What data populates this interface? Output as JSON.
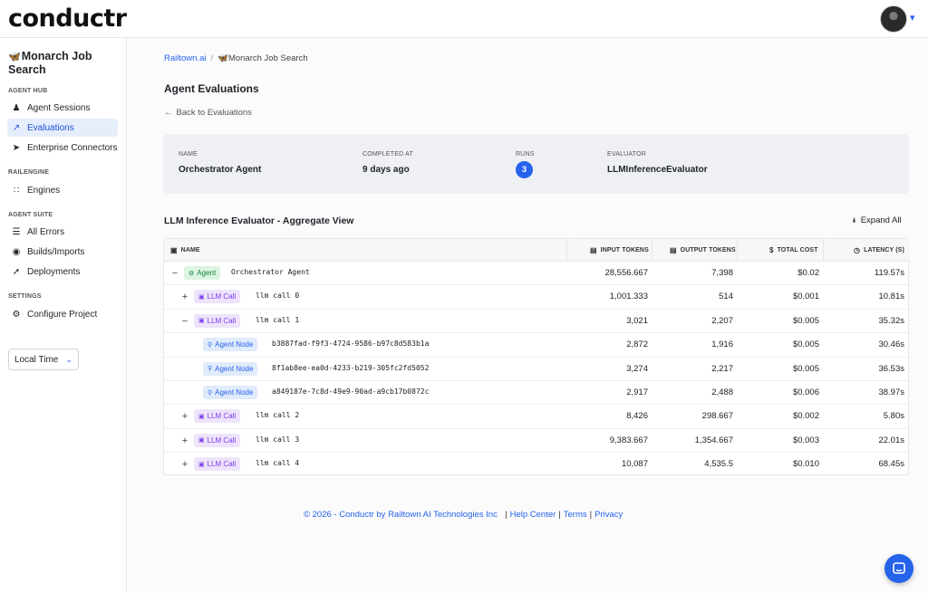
{
  "app": {
    "logo": "conductr"
  },
  "sidebar": {
    "project": "Monarch Job Search",
    "sections": [
      {
        "label": "AGENT HUB",
        "items": [
          {
            "label": "Agent Sessions",
            "icon": "user-icon"
          },
          {
            "label": "Evaluations",
            "icon": "chart-icon",
            "active": true
          },
          {
            "label": "Enterprise Connectors",
            "icon": "send-icon"
          }
        ]
      },
      {
        "label": "RAILENGINE",
        "items": [
          {
            "label": "Engines",
            "icon": "network-icon"
          }
        ]
      },
      {
        "label": "AGENT SUITE",
        "items": [
          {
            "label": "All Errors",
            "icon": "list-icon"
          },
          {
            "label": "Builds/Imports",
            "icon": "fire-icon"
          },
          {
            "label": "Deployments",
            "icon": "rocket-icon"
          }
        ]
      },
      {
        "label": "SETTINGS",
        "items": [
          {
            "label": "Configure Project",
            "icon": "gear-icon"
          }
        ]
      }
    ],
    "timezone": "Local Time"
  },
  "breadcrumb": {
    "root": "Railtown.ai",
    "separator": "/",
    "current": "Monarch Job Search"
  },
  "page": {
    "title": "Agent Evaluations",
    "back_label": "Back to Evaluations"
  },
  "summary": {
    "name_label": "NAME",
    "name": "Orchestrator Agent",
    "completed_label": "COMPLETED AT",
    "completed": "9 days ago",
    "runs_label": "RUNS",
    "runs": "3",
    "evaluator_label": "EVALUATOR",
    "evaluator": "LLMInferenceEvaluator"
  },
  "aggregate": {
    "title": "LLM Inference Evaluator - Aggregate View",
    "expand_label": "Expand All"
  },
  "table": {
    "columns": {
      "name": "NAME",
      "input": "INPUT TOKENS",
      "output": "OUTPUT TOKENS",
      "cost": "TOTAL COST",
      "latency": "LATENCY (S)"
    },
    "rows": [
      {
        "toggle": "−",
        "level": 0,
        "tag": "Agent",
        "kind": "agent",
        "name": "Orchestrator Agent",
        "input": "28,556.667",
        "output": "7,398",
        "cost": "$0.02",
        "latency": "119.57s"
      },
      {
        "toggle": "+",
        "level": 1,
        "tag": "LLM Call",
        "kind": "llm",
        "name": "llm call 0",
        "input": "1,001.333",
        "output": "514",
        "cost": "$0.001",
        "latency": "10.81s"
      },
      {
        "toggle": "−",
        "level": 1,
        "tag": "LLM Call",
        "kind": "llm",
        "name": "llm call 1",
        "input": "3,021",
        "output": "2,207",
        "cost": "$0.005",
        "latency": "35.32s"
      },
      {
        "toggle": "",
        "level": 2,
        "tag": "Agent Node",
        "kind": "node",
        "name": "b3887fad-f9f3-4724-9586-b97c8d583b1a",
        "input": "2,872",
        "output": "1,916",
        "cost": "$0.005",
        "latency": "30.46s"
      },
      {
        "toggle": "",
        "level": 2,
        "tag": "Agent Node",
        "kind": "node",
        "name": "8f1ab8ee-ea0d-4233-b219-305fc2fd5052",
        "input": "3,274",
        "output": "2,217",
        "cost": "$0.005",
        "latency": "36.53s"
      },
      {
        "toggle": "",
        "level": 2,
        "tag": "Agent Node",
        "kind": "node",
        "name": "a849187e-7c8d-49e9-90ad-a9cb17b0872c",
        "input": "2,917",
        "output": "2,488",
        "cost": "$0.006",
        "latency": "38.97s"
      },
      {
        "toggle": "+",
        "level": 1,
        "tag": "LLM Call",
        "kind": "llm",
        "name": "llm call 2",
        "input": "8,426",
        "output": "298.667",
        "cost": "$0.002",
        "latency": "5.80s"
      },
      {
        "toggle": "+",
        "level": 1,
        "tag": "LLM Call",
        "kind": "llm",
        "name": "llm call 3",
        "input": "9,383.667",
        "output": "1,354.667",
        "cost": "$0.003",
        "latency": "22.01s"
      },
      {
        "toggle": "+",
        "level": 1,
        "tag": "LLM Call",
        "kind": "llm",
        "name": "llm call 4",
        "input": "10,087",
        "output": "4,535.5",
        "cost": "$0.010",
        "latency": "68.45s"
      }
    ]
  },
  "footer": {
    "copyright": "© 2026 - Conductr by Railtown AI Technologies Inc",
    "help": "Help Center",
    "terms": "Terms",
    "privacy": "Privacy"
  },
  "colors": {
    "accent": "#2563eb",
    "agent_tag": "#15803d",
    "llm_tag": "#7c3aed"
  }
}
